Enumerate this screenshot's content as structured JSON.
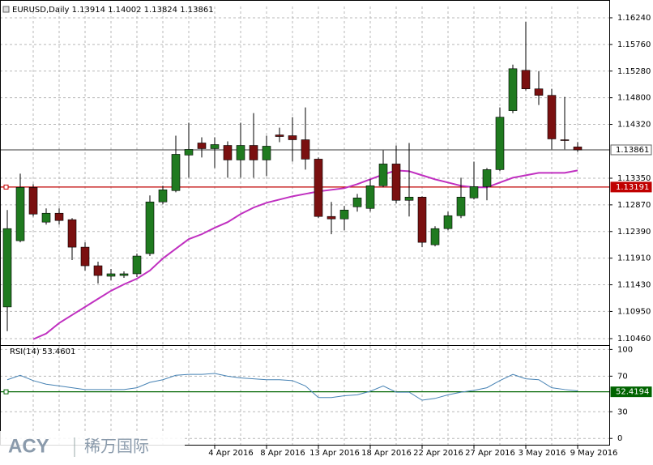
{
  "chart_data": [
    {
      "type": "candlestick",
      "title": "EURUSD,Daily  1.13914 1.14002 1.13824 1.13861",
      "categories": [
        null,
        null,
        null,
        null,
        null,
        null,
        null,
        null,
        null,
        null,
        null,
        null,
        null,
        null,
        null,
        null,
        "4 Apr 2016",
        null,
        null,
        null,
        "8 Apr 2016",
        null,
        null,
        null,
        "13 Apr 2016",
        null,
        null,
        null,
        "18 Apr 2016",
        null,
        null,
        null,
        "22 Apr 2016",
        null,
        null,
        null,
        "27 Apr 2016",
        null,
        null,
        null,
        "3 May 2016",
        null,
        null,
        null,
        "9 May 2016"
      ],
      "open": [
        1.11031,
        1.12224,
        1.13185,
        1.12559,
        1.12719,
        1.12603,
        1.12108,
        1.11773,
        1.11584,
        1.11598,
        1.11628,
        1.11992,
        1.12923,
        1.13127,
        1.13767,
        1.13985,
        1.13883,
        1.13941,
        1.13679,
        1.13941,
        1.13679,
        1.1413,
        1.14116,
        1.14043,
        1.13694,
        1.12661,
        1.12617,
        1.12835,
        1.12806,
        1.13214,
        1.13607,
        1.12952,
        1.1301,
        1.12151,
        1.12442,
        1.12675,
        1.12995,
        1.13199,
        1.13505,
        1.14567,
        1.15294,
        1.1496,
        1.14843,
        1.14043,
        1.13914
      ],
      "high": [
        1.12777,
        1.13432,
        1.13243,
        1.12806,
        1.12806,
        1.12632,
        1.12195,
        1.11846,
        1.11715,
        1.11671,
        1.11992,
        1.13039,
        1.13214,
        1.14116,
        1.14349,
        1.14087,
        1.14087,
        1.14014,
        1.14349,
        1.14523,
        1.14116,
        1.14261,
        1.1445,
        1.14625,
        1.13723,
        1.12923,
        1.1285,
        1.13068,
        1.1333,
        1.13854,
        1.13941,
        1.13985,
        1.13024,
        1.12486,
        1.12748,
        1.13359,
        1.1365,
        1.13534,
        1.14625,
        1.15396,
        1.16167,
        1.1528,
        1.1496,
        1.14814,
        1.14002
      ],
      "low": [
        1.10595,
        1.12195,
        1.12661,
        1.12515,
        1.12515,
        1.11875,
        1.11686,
        1.11453,
        1.11511,
        1.11555,
        1.11569,
        1.11948,
        1.12879,
        1.13097,
        1.13359,
        1.13723,
        1.13534,
        1.13359,
        1.13359,
        1.13359,
        1.13388,
        1.14,
        1.1365,
        1.13505,
        1.12632,
        1.12341,
        1.12413,
        1.12748,
        1.12748,
        1.13185,
        1.12894,
        1.12661,
        1.12108,
        1.12122,
        1.12413,
        1.12632,
        1.12966,
        1.12952,
        1.13476,
        1.14523,
        1.14931,
        1.14669,
        1.13869,
        1.13869,
        1.13824
      ],
      "close": [
        1.12442,
        1.13185,
        1.12704,
        1.12719,
        1.12588,
        1.12108,
        1.11773,
        1.11598,
        1.11628,
        1.11628,
        1.11948,
        1.12923,
        1.13141,
        1.13781,
        1.13869,
        1.13883,
        1.13956,
        1.13679,
        1.13941,
        1.13679,
        1.13927,
        1.14101,
        1.14043,
        1.13694,
        1.12661,
        1.12617,
        1.12777,
        1.12995,
        1.13214,
        1.13607,
        1.12952,
        1.1301,
        1.12195,
        1.12442,
        1.12675,
        1.1301,
        1.13199,
        1.13505,
        1.1445,
        1.15323,
        1.1496,
        1.14843,
        1.14058,
        1.14029,
        1.13861
      ],
      "up_color": "#1f7a1f",
      "down_color": "#7a1010",
      "overlays": [
        {
          "color": "#c030c0",
          "values": [
            null,
            null,
            1.10449,
            1.10551,
            1.1074,
            1.10886,
            1.11031,
            1.11177,
            1.11322,
            1.11438,
            1.1154,
            1.11686,
            1.11904,
            1.12079,
            1.12253,
            1.12341,
            1.12457,
            1.12559,
            1.12704,
            1.12821,
            1.12908,
            1.12966,
            1.13024,
            1.13068,
            1.13112,
            1.13141,
            1.1317,
            1.13243,
            1.1333,
            1.13417,
            1.1349,
            1.13476,
            1.13403,
            1.1333,
            1.13272,
            1.13214,
            1.13185,
            1.13185,
            1.13272,
            1.13359,
            1.13403,
            1.13446,
            1.13446,
            1.13446,
            1.1349
          ]
        }
      ],
      "ylim": [
        1.10358,
        1.16444
      ],
      "yticks": [
        {
          "value": 1.1624,
          "label": "1.16240"
        },
        {
          "value": 1.1576,
          "label": "1.15760"
        },
        {
          "value": 1.1528,
          "label": "1.15280"
        },
        {
          "value": 1.148,
          "label": "1.14800"
        },
        {
          "value": 1.1432,
          "label": "1.14320"
        },
        {
          "value": 1.1335,
          "label": "1.13350"
        },
        {
          "value": 1.1287,
          "label": "1.12870"
        },
        {
          "value": 1.1239,
          "label": "1.12390"
        },
        {
          "value": 1.1191,
          "label": "1.11910"
        },
        {
          "value": 1.1143,
          "label": "1.11430"
        },
        {
          "value": 1.1095,
          "label": "1.10950"
        },
        {
          "value": 1.1046,
          "label": "1.10460"
        }
      ],
      "grid": true,
      "hlines": [
        {
          "value": 1.13861,
          "color": "#606060",
          "text_color": "#000000",
          "box": "#ffffff"
        },
        {
          "value": 1.13191,
          "color": "#c00000",
          "text_color": "#ffffff",
          "box": "#c00000"
        }
      ]
    },
    {
      "type": "line",
      "title": "RSI(14) 53.4601",
      "values": [
        66,
        71,
        65,
        61,
        59,
        57,
        55,
        55,
        55,
        55,
        57,
        63,
        66,
        71,
        72,
        72,
        73,
        70,
        68,
        67,
        66,
        66,
        65,
        59,
        46,
        46,
        48,
        49,
        53,
        59,
        52,
        52,
        43,
        45,
        49,
        52,
        54,
        57,
        65,
        72,
        67,
        66,
        57,
        55,
        53.46
      ],
      "color": "#4682b4",
      "ylim": [
        -8,
        104
      ],
      "yticks": [
        0,
        30,
        70,
        100
      ],
      "grid": true,
      "hlines": [
        {
          "value": 52.4194,
          "color": "#006400",
          "text_color": "#ffffff",
          "box": "#006400"
        }
      ]
    }
  ],
  "watermark": {
    "brand": "ACY",
    "name": "稀万国际"
  }
}
